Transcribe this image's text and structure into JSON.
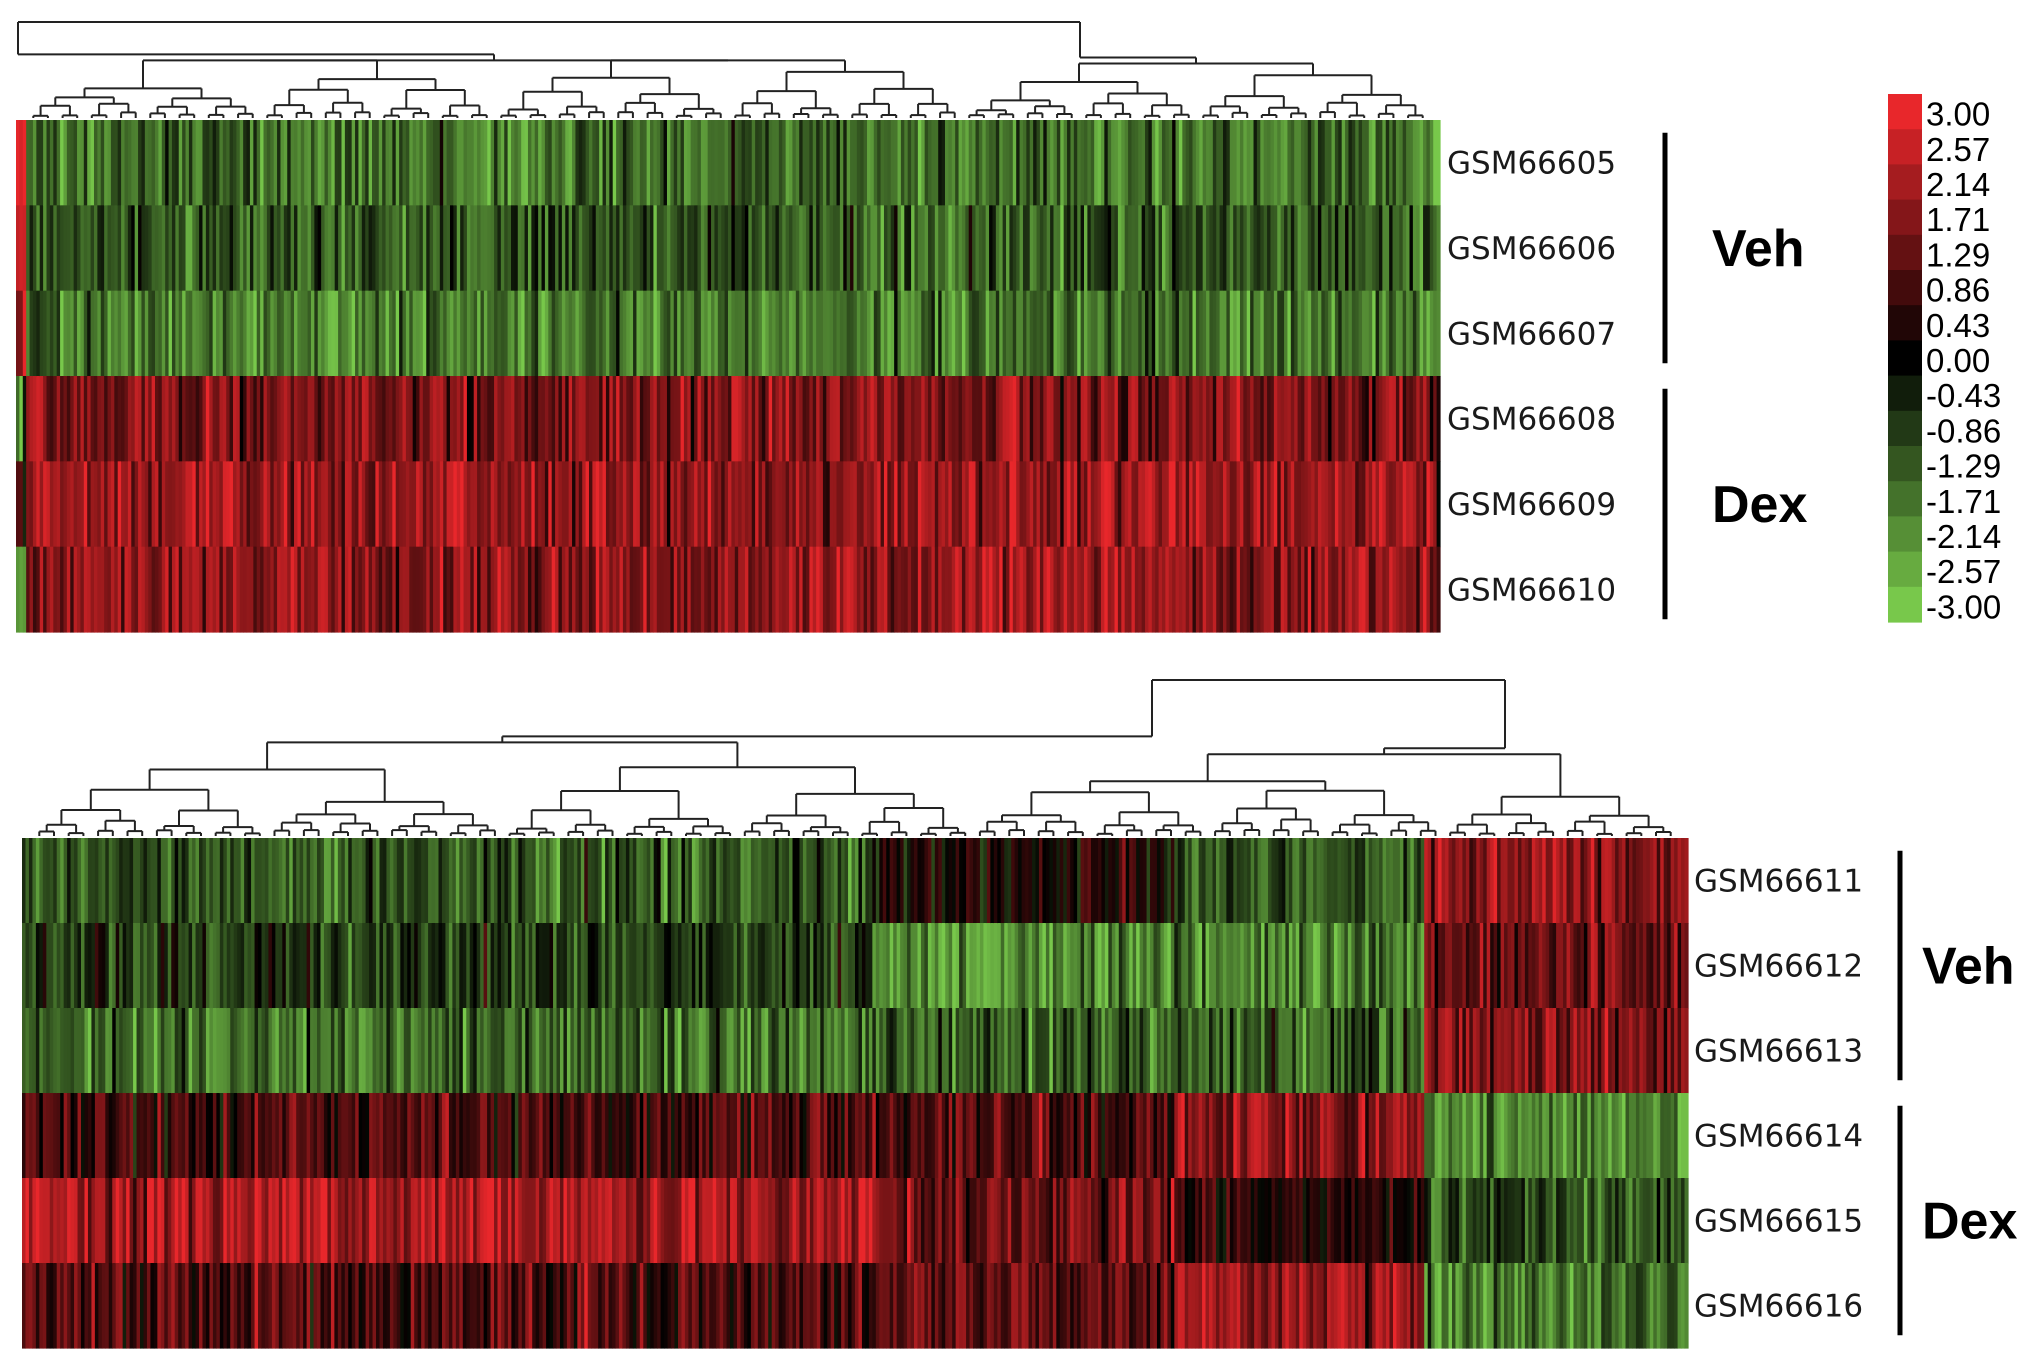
{
  "chart_data": {
    "type": "heatmap",
    "colorscale": {
      "low_color": "#78c84b",
      "mid_color": "#000000",
      "high_color": "#e8272b",
      "ticks": [
        "3.00",
        "2.57",
        "2.14",
        "1.71",
        "1.29",
        "0.86",
        "0.43",
        "0.00",
        "-0.43",
        "-0.86",
        "-1.29",
        "-1.71",
        "-2.14",
        "-2.57",
        "-3.00"
      ],
      "range": [
        -3.0,
        3.0
      ]
    },
    "panels": [
      {
        "rows": [
          "GSM66605",
          "GSM66606",
          "GSM66607",
          "GSM66608",
          "GSM66609",
          "GSM66610"
        ],
        "groups": [
          {
            "label": "Veh",
            "rows": [
              "GSM66605",
              "GSM66606",
              "GSM66607"
            ]
          },
          {
            "label": "Dex",
            "rows": [
              "GSM66608",
              "GSM66609",
              "GSM66610"
            ]
          }
        ],
        "n_columns": 420,
        "row_mean_values": [
          -1.6,
          -1.3,
          -1.8,
          1.6,
          2.0,
          1.8
        ]
      },
      {
        "rows": [
          "GSM66611",
          "GSM66612",
          "GSM66613",
          "GSM66614",
          "GSM66615",
          "GSM66616"
        ],
        "groups": [
          {
            "label": "Veh",
            "rows": [
              "GSM66611",
              "GSM66612",
              "GSM66613"
            ]
          },
          {
            "label": "Dex",
            "rows": [
              "GSM66614",
              "GSM66615",
              "GSM66616"
            ]
          }
        ],
        "n_columns": 480,
        "column_clusters": [
          {
            "fraction": 0.51,
            "row_mean_values": [
              -1.2,
              -0.8,
              -1.6,
              0.9,
              2.2,
              0.9
            ]
          },
          {
            "fraction": 0.18,
            "row_mean_values": [
              0.3,
              -2.0,
              -1.2,
              1.1,
              1.5,
              1.2
            ]
          },
          {
            "fraction": 0.15,
            "row_mean_values": [
              -1.2,
              -1.7,
              -1.3,
              1.7,
              0.4,
              2.0
            ]
          },
          {
            "fraction": 0.16,
            "row_mean_values": [
              1.7,
              1.3,
              1.7,
              -1.9,
              -1.0,
              -1.7
            ]
          }
        ]
      }
    ]
  }
}
